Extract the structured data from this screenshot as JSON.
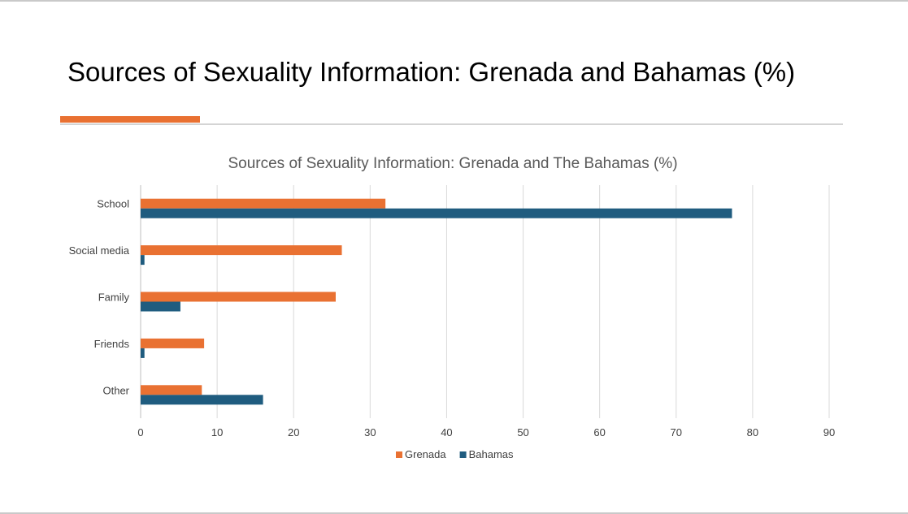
{
  "slide": {
    "title": "Sources of Sexuality Information: Grenada and Bahamas (%)",
    "accent_color": "#E97132"
  },
  "chart_data": {
    "type": "bar",
    "orientation": "horizontal",
    "title": "Sources of Sexuality Information: Grenada and The Bahamas (%)",
    "categories": [
      "School",
      "Social media",
      "Family",
      "Friends",
      "Other"
    ],
    "series": [
      {
        "name": "Grenada",
        "color": "#E97132",
        "values": [
          32,
          26.3,
          25.5,
          8.3,
          8
        ]
      },
      {
        "name": "Bahamas",
        "color": "#1F5C7F",
        "values": [
          77.3,
          0.5,
          5.2,
          0.5,
          16
        ]
      }
    ],
    "xlim": [
      0,
      90
    ],
    "xticks": [
      0,
      10,
      20,
      30,
      40,
      50,
      60,
      70,
      80,
      90
    ],
    "grid": true,
    "legend": "bottom",
    "xlabel": "",
    "ylabel": ""
  }
}
